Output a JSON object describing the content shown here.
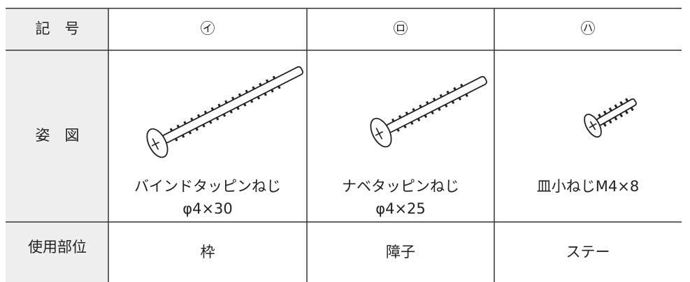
{
  "table": {
    "header": [
      "記　号",
      "㋑",
      "㋺",
      "㋩"
    ],
    "figure_row": {
      "label": "姿　図",
      "items": [
        {
          "name": "バインドタッピンねじ",
          "spec": "φ4×30"
        },
        {
          "name": "ナベタッピンねじ",
          "spec": "φ4×25"
        },
        {
          "name": "皿小ねじM4×8"
        }
      ]
    },
    "usage_row": {
      "label": "使用部位",
      "cells": [
        "枠",
        "障子",
        "ステー"
      ]
    }
  }
}
